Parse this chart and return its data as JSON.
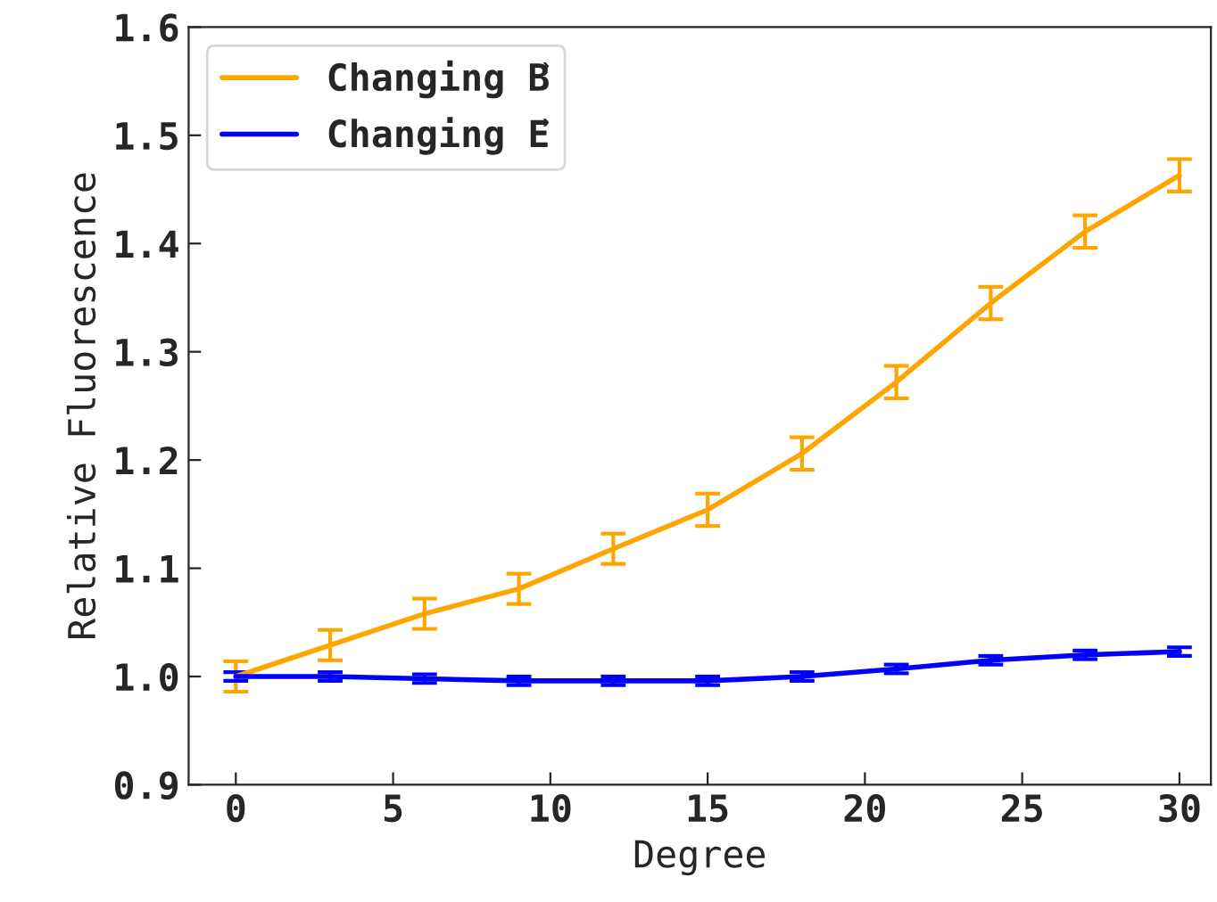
{
  "chart_data": {
    "type": "line",
    "xlabel": "Degree",
    "ylabel": "Relative Fluorescence",
    "x": [
      0,
      3,
      6,
      9,
      12,
      15,
      18,
      21,
      24,
      27,
      30
    ],
    "series": [
      {
        "name": "Changing B⃗",
        "color": "#ffa500",
        "values": [
          1.0,
          1.029,
          1.058,
          1.081,
          1.118,
          1.154,
          1.206,
          1.272,
          1.345,
          1.411,
          1.463
        ],
        "errors": [
          0.014,
          0.014,
          0.014,
          0.014,
          0.014,
          0.015,
          0.015,
          0.015,
          0.015,
          0.015,
          0.015
        ]
      },
      {
        "name": "Changing E⃗",
        "color": "#0000ff",
        "values": [
          1.0,
          1.0,
          0.998,
          0.996,
          0.996,
          0.996,
          1.0,
          1.007,
          1.015,
          1.02,
          1.023
        ],
        "errors": [
          0.004,
          0.004,
          0.004,
          0.004,
          0.004,
          0.004,
          0.004,
          0.004,
          0.004,
          0.004,
          0.004
        ]
      }
    ],
    "xlim": [
      -1.5,
      31
    ],
    "xticks": [
      0,
      5,
      10,
      15,
      20,
      25,
      30
    ],
    "ylim": [
      0.9,
      1.6
    ],
    "yticks": [
      0.9,
      {
        "value": 1.0,
        "label": "1.0"
      },
      1.1,
      1.2,
      1.3,
      1.4,
      1.5,
      1.6
    ],
    "legend": "top left",
    "grid": false
  }
}
